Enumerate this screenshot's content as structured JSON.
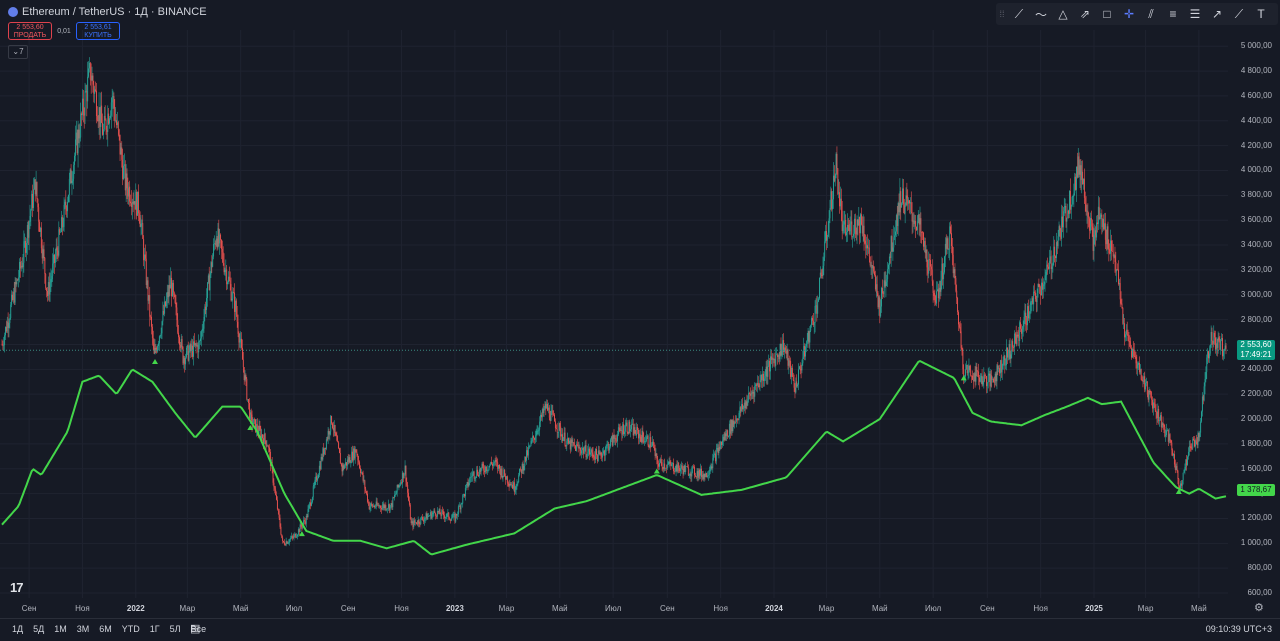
{
  "header": {
    "symbol_title": "Ethereum / TetherUS · 1Д · BINANCE",
    "sell": {
      "price": "2 553,60",
      "label": "ПРОДАТЬ"
    },
    "spread": "0,01",
    "buy": {
      "price": "2 553,61",
      "label": "КУПИТЬ"
    },
    "indicators_count": "7"
  },
  "drawing_tools": [
    "cursor-grip-icon",
    "trend-line-icon",
    "polyline-icon",
    "triangle-pattern-icon",
    "arrow-marker-icon",
    "rectangle-icon",
    "crosshair-icon",
    "parallel-channel-icon",
    "fib-retracement-icon",
    "horizontal-lines-icon",
    "ray-icon",
    "pitchfork-icon",
    "text-icon"
  ],
  "price_axis": {
    "labels": [
      "5 000,00",
      "4 800,00",
      "4 600,00",
      "4 400,00",
      "4 200,00",
      "4 000,00",
      "3 800,00",
      "3 600,00",
      "3 400,00",
      "3 200,00",
      "3 000,00",
      "2 800,00",
      "2 600,00",
      "2 400,00",
      "2 200,00",
      "2 000,00",
      "1 800,00",
      "1 600,00",
      "1 400,00",
      "1 200,00",
      "1 000,00",
      "800,00",
      "600,00"
    ],
    "current_price": "2 553,60",
    "countdown": "17:49:21",
    "ma_value": "1 378,67"
  },
  "time_axis": [
    {
      "label": "Сен",
      "bold": false
    },
    {
      "label": "Ноя",
      "bold": false
    },
    {
      "label": "2022",
      "bold": true
    },
    {
      "label": "Мар",
      "bold": false
    },
    {
      "label": "Май",
      "bold": false
    },
    {
      "label": "Июл",
      "bold": false
    },
    {
      "label": "Сен",
      "bold": false
    },
    {
      "label": "Ноя",
      "bold": false
    },
    {
      "label": "2023",
      "bold": true
    },
    {
      "label": "Мар",
      "bold": false
    },
    {
      "label": "Май",
      "bold": false
    },
    {
      "label": "Июл",
      "bold": false
    },
    {
      "label": "Сен",
      "bold": false
    },
    {
      "label": "Ноя",
      "bold": false
    },
    {
      "label": "2024",
      "bold": true
    },
    {
      "label": "Мар",
      "bold": false
    },
    {
      "label": "Май",
      "bold": false
    },
    {
      "label": "Июл",
      "bold": false
    },
    {
      "label": "Сен",
      "bold": false
    },
    {
      "label": "Ноя",
      "bold": false
    },
    {
      "label": "2025",
      "bold": true
    },
    {
      "label": "Мар",
      "bold": false
    },
    {
      "label": "Май",
      "bold": false
    }
  ],
  "timeframes": [
    "1Д",
    "5Д",
    "1М",
    "3М",
    "6М",
    "YTD",
    "1Г",
    "5Л",
    "Все"
  ],
  "clock": "09:10:39 UTC+3",
  "logo": "17",
  "colors": {
    "background": "#161a25",
    "up": "#26a69a",
    "down": "#ef5350",
    "ma": "#43d64a",
    "grid": "#1f2330"
  },
  "chart_data": {
    "type": "candlestick",
    "y_unit": "USDT",
    "ylim": [
      560,
      5050
    ],
    "price_anchors": [
      {
        "date": "2021-08-01",
        "price": 2600
      },
      {
        "date": "2021-08-25",
        "price": 3300
      },
      {
        "date": "2021-09-08",
        "price": 3900
      },
      {
        "date": "2021-09-22",
        "price": 3000
      },
      {
        "date": "2021-10-10",
        "price": 3600
      },
      {
        "date": "2021-10-25",
        "price": 4200
      },
      {
        "date": "2021-11-10",
        "price": 4800
      },
      {
        "date": "2021-11-25",
        "price": 4300
      },
      {
        "date": "2021-12-05",
        "price": 4600
      },
      {
        "date": "2021-12-20",
        "price": 3900
      },
      {
        "date": "2022-01-05",
        "price": 3700
      },
      {
        "date": "2022-01-22",
        "price": 2500
      },
      {
        "date": "2022-02-10",
        "price": 3100
      },
      {
        "date": "2022-02-24",
        "price": 2500
      },
      {
        "date": "2022-03-15",
        "price": 2600
      },
      {
        "date": "2022-04-03",
        "price": 3500
      },
      {
        "date": "2022-04-25",
        "price": 2900
      },
      {
        "date": "2022-05-12",
        "price": 2000
      },
      {
        "date": "2022-06-01",
        "price": 1800
      },
      {
        "date": "2022-06-18",
        "price": 1000
      },
      {
        "date": "2022-07-01",
        "price": 1050
      },
      {
        "date": "2022-07-15",
        "price": 1200
      },
      {
        "date": "2022-08-13",
        "price": 2000
      },
      {
        "date": "2022-08-25",
        "price": 1600
      },
      {
        "date": "2022-09-10",
        "price": 1750
      },
      {
        "date": "2022-09-25",
        "price": 1300
      },
      {
        "date": "2022-10-20",
        "price": 1300
      },
      {
        "date": "2022-11-05",
        "price": 1600
      },
      {
        "date": "2022-11-12",
        "price": 1150
      },
      {
        "date": "2022-12-10",
        "price": 1250
      },
      {
        "date": "2023-01-01",
        "price": 1200
      },
      {
        "date": "2023-01-20",
        "price": 1550
      },
      {
        "date": "2023-02-15",
        "price": 1650
      },
      {
        "date": "2023-03-10",
        "price": 1450
      },
      {
        "date": "2023-04-15",
        "price": 2100
      },
      {
        "date": "2023-05-10",
        "price": 1800
      },
      {
        "date": "2023-06-15",
        "price": 1700
      },
      {
        "date": "2023-07-15",
        "price": 1950
      },
      {
        "date": "2023-08-15",
        "price": 1800
      },
      {
        "date": "2023-08-20",
        "price": 1650
      },
      {
        "date": "2023-10-15",
        "price": 1550
      },
      {
        "date": "2023-11-05",
        "price": 1850
      },
      {
        "date": "2023-12-10",
        "price": 2250
      },
      {
        "date": "2024-01-12",
        "price": 2600
      },
      {
        "date": "2024-01-25",
        "price": 2250
      },
      {
        "date": "2024-02-20",
        "price": 2950
      },
      {
        "date": "2024-03-12",
        "price": 4050
      },
      {
        "date": "2024-03-20",
        "price": 3500
      },
      {
        "date": "2024-04-10",
        "price": 3600
      },
      {
        "date": "2024-05-01",
        "price": 2900
      },
      {
        "date": "2024-05-25",
        "price": 3800
      },
      {
        "date": "2024-06-15",
        "price": 3550
      },
      {
        "date": "2024-07-05",
        "price": 2950
      },
      {
        "date": "2024-07-20",
        "price": 3500
      },
      {
        "date": "2024-08-05",
        "price": 2400
      },
      {
        "date": "2024-09-05",
        "price": 2300
      },
      {
        "date": "2024-10-01",
        "price": 2600
      },
      {
        "date": "2024-11-10",
        "price": 3200
      },
      {
        "date": "2024-12-16",
        "price": 4050
      },
      {
        "date": "2025-01-01",
        "price": 3400
      },
      {
        "date": "2025-01-06",
        "price": 3650
      },
      {
        "date": "2025-01-25",
        "price": 3300
      },
      {
        "date": "2025-02-05",
        "price": 2700
      },
      {
        "date": "2025-03-05",
        "price": 2200
      },
      {
        "date": "2025-03-30",
        "price": 1800
      },
      {
        "date": "2025-04-09",
        "price": 1450
      },
      {
        "date": "2025-04-22",
        "price": 1800
      },
      {
        "date": "2025-05-01",
        "price": 1850
      },
      {
        "date": "2025-05-10",
        "price": 2500
      },
      {
        "date": "2025-05-15",
        "price": 2650
      },
      {
        "date": "2025-06-01",
        "price": 2553.6
      }
    ],
    "ma_anchors": [
      {
        "date": "2021-08-01",
        "price": 1150
      },
      {
        "date": "2021-08-20",
        "price": 1300
      },
      {
        "date": "2021-09-05",
        "price": 1600
      },
      {
        "date": "2021-09-15",
        "price": 1550
      },
      {
        "date": "2021-10-15",
        "price": 1900
      },
      {
        "date": "2021-11-01",
        "price": 2300
      },
      {
        "date": "2021-11-20",
        "price": 2350
      },
      {
        "date": "2021-12-10",
        "price": 2200
      },
      {
        "date": "2021-12-28",
        "price": 2400
      },
      {
        "date": "2022-01-20",
        "price": 2300
      },
      {
        "date": "2022-02-15",
        "price": 2050
      },
      {
        "date": "2022-03-10",
        "price": 1850
      },
      {
        "date": "2022-04-10",
        "price": 2100
      },
      {
        "date": "2022-05-01",
        "price": 2100
      },
      {
        "date": "2022-05-20",
        "price": 1900
      },
      {
        "date": "2022-06-20",
        "price": 1400
      },
      {
        "date": "2022-07-15",
        "price": 1100
      },
      {
        "date": "2022-08-15",
        "price": 1020
      },
      {
        "date": "2022-09-15",
        "price": 1020
      },
      {
        "date": "2022-10-15",
        "price": 960
      },
      {
        "date": "2022-11-15",
        "price": 1020
      },
      {
        "date": "2022-12-05",
        "price": 910
      },
      {
        "date": "2023-01-15",
        "price": 990
      },
      {
        "date": "2023-03-10",
        "price": 1080
      },
      {
        "date": "2023-04-25",
        "price": 1280
      },
      {
        "date": "2023-06-01",
        "price": 1340
      },
      {
        "date": "2023-08-20",
        "price": 1550
      },
      {
        "date": "2023-10-10",
        "price": 1390
      },
      {
        "date": "2023-11-25",
        "price": 1430
      },
      {
        "date": "2024-01-15",
        "price": 1530
      },
      {
        "date": "2024-03-01",
        "price": 1900
      },
      {
        "date": "2024-03-20",
        "price": 1820
      },
      {
        "date": "2024-05-01",
        "price": 2000
      },
      {
        "date": "2024-06-15",
        "price": 2470
      },
      {
        "date": "2024-07-05",
        "price": 2400
      },
      {
        "date": "2024-07-25",
        "price": 2330
      },
      {
        "date": "2024-08-15",
        "price": 2050
      },
      {
        "date": "2024-09-05",
        "price": 1980
      },
      {
        "date": "2024-10-10",
        "price": 1950
      },
      {
        "date": "2024-11-05",
        "price": 2030
      },
      {
        "date": "2024-12-01",
        "price": 2100
      },
      {
        "date": "2024-12-25",
        "price": 2170
      },
      {
        "date": "2025-01-10",
        "price": 2120
      },
      {
        "date": "2025-02-01",
        "price": 2140
      },
      {
        "date": "2025-03-10",
        "price": 1650
      },
      {
        "date": "2025-04-05",
        "price": 1450
      },
      {
        "date": "2025-04-20",
        "price": 1400
      },
      {
        "date": "2025-05-01",
        "price": 1440
      },
      {
        "date": "2025-05-20",
        "price": 1360
      },
      {
        "date": "2025-06-01",
        "price": 1378.67
      }
    ],
    "signal_markers": [
      "2022-01-23",
      "2022-05-12",
      "2022-07-10",
      "2023-08-20",
      "2024-08-05",
      "2025-04-08"
    ]
  }
}
